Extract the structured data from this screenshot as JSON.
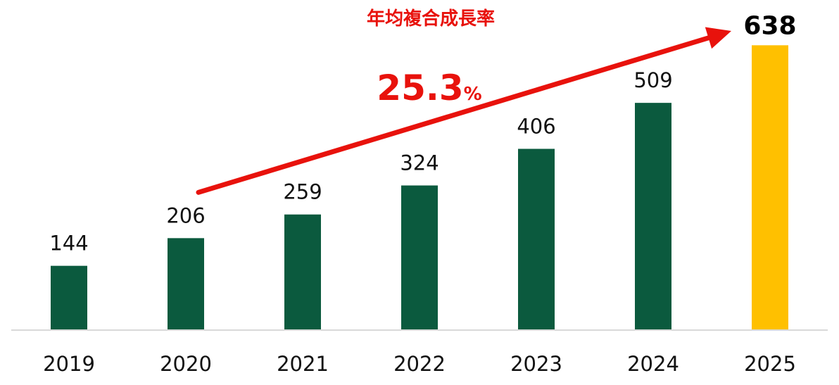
{
  "chart_data": {
    "type": "bar",
    "categories": [
      "2019",
      "2020",
      "2021",
      "2022",
      "2023",
      "2024",
      "2025"
    ],
    "values": [
      144,
      206,
      259,
      324,
      406,
      509,
      638
    ],
    "data_labels": [
      "144",
      "206",
      "259",
      "324",
      "406",
      "509",
      "638"
    ],
    "highlight_index": 6,
    "ylim": [
      0,
      700
    ],
    "grid": false,
    "colors": {
      "bar": "#0b5a3e",
      "highlight": "#ffc000",
      "annotation": "#e8120c",
      "axis": "#d9d9d9"
    },
    "annotation": {
      "title": "年均複合成長率",
      "value": "25.3",
      "unit": "%",
      "arrow_from_index": 1,
      "arrow_to_index": 6
    }
  }
}
